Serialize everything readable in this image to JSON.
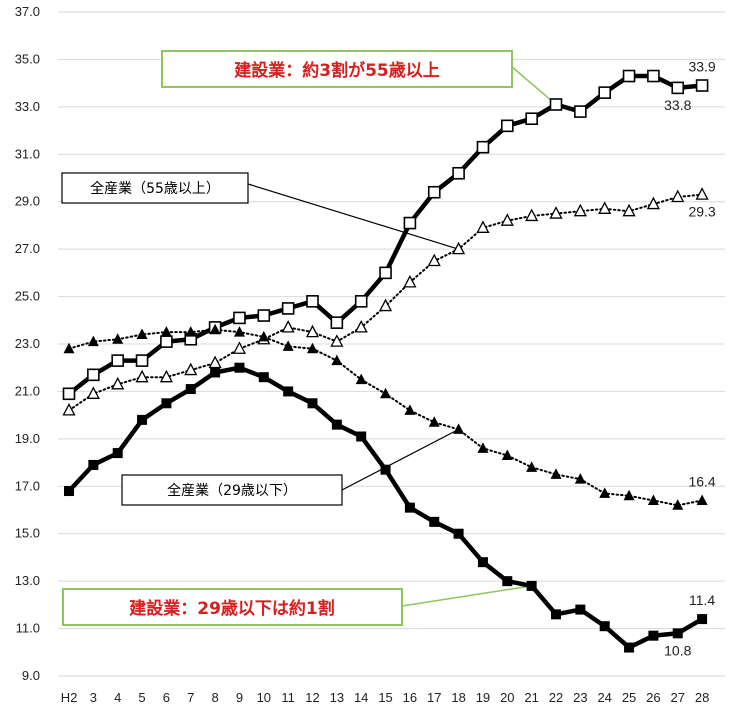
{
  "chart_data": {
    "type": "line",
    "categories": [
      "H2",
      "3",
      "4",
      "5",
      "6",
      "7",
      "8",
      "9",
      "10",
      "11",
      "12",
      "13",
      "14",
      "15",
      "16",
      "17",
      "18",
      "19",
      "20",
      "21",
      "22",
      "23",
      "24",
      "25",
      "26",
      "27",
      "28"
    ],
    "ylim": [
      9.0,
      37.0
    ],
    "yticks": [
      "9.0",
      "11.0",
      "13.0",
      "15.0",
      "17.0",
      "19.0",
      "21.0",
      "23.0",
      "25.0",
      "27.0",
      "29.0",
      "31.0",
      "33.0",
      "35.0",
      "37.0"
    ],
    "grid": true,
    "series": [
      {
        "key": "const55",
        "style": "thick-solid",
        "marker": "open-square",
        "values": [
          20.9,
          21.7,
          22.3,
          22.3,
          23.1,
          23.2,
          23.7,
          24.1,
          24.2,
          24.5,
          24.8,
          23.9,
          24.8,
          26.0,
          28.1,
          29.4,
          30.2,
          31.3,
          32.2,
          32.5,
          33.1,
          32.8,
          33.6,
          34.3,
          34.3,
          33.8,
          33.9
        ]
      },
      {
        "key": "all55",
        "style": "dotted",
        "marker": "open-triangle",
        "values": [
          20.2,
          20.9,
          21.3,
          21.6,
          21.6,
          21.9,
          22.2,
          22.8,
          23.2,
          23.7,
          23.5,
          23.1,
          23.7,
          24.6,
          25.6,
          26.5,
          27.0,
          27.9,
          28.2,
          28.4,
          28.5,
          28.6,
          28.7,
          28.6,
          28.9,
          29.2,
          29.3
        ]
      },
      {
        "key": "all29",
        "style": "dotted",
        "marker": "filled-triangle",
        "values": [
          22.8,
          23.1,
          23.2,
          23.4,
          23.5,
          23.5,
          23.6,
          23.5,
          23.3,
          22.9,
          22.8,
          22.3,
          21.5,
          20.9,
          20.2,
          19.7,
          19.4,
          18.6,
          18.3,
          17.8,
          17.5,
          17.3,
          16.7,
          16.6,
          16.4,
          16.2,
          16.4
        ]
      },
      {
        "key": "const29",
        "style": "thick-solid",
        "marker": "filled-square",
        "values": [
          16.8,
          17.9,
          18.4,
          19.8,
          20.5,
          21.1,
          21.8,
          22.0,
          21.6,
          21.0,
          20.5,
          19.6,
          19.1,
          17.7,
          16.1,
          15.5,
          15.0,
          13.8,
          13.0,
          12.8,
          11.6,
          11.8,
          11.1,
          10.2,
          10.7,
          10.8,
          11.4
        ]
      }
    ],
    "data_labels": [
      {
        "series": "const55",
        "index": 26,
        "text": "33.9",
        "pos": "above"
      },
      {
        "series": "const55",
        "index": 25,
        "text": "33.8",
        "pos": "below"
      },
      {
        "series": "all55",
        "index": 26,
        "text": "29.3",
        "pos": "below"
      },
      {
        "series": "all29",
        "index": 26,
        "text": "16.4",
        "pos": "above"
      },
      {
        "series": "const29",
        "index": 26,
        "text": "11.4",
        "pos": "above"
      },
      {
        "series": "const29",
        "index": 25,
        "text": "10.8",
        "pos": "below"
      }
    ],
    "annotations": [
      {
        "key": "ann_const55",
        "text": "建設業：約3割が55歳以上",
        "style": "red"
      },
      {
        "key": "ann_all55",
        "text": "全産業（55歳以上）",
        "style": "black"
      },
      {
        "key": "ann_all29",
        "text": "全産業（29歳以下）",
        "style": "black"
      },
      {
        "key": "ann_const29",
        "text": "建設業：29歳以下は約1割",
        "style": "red"
      }
    ]
  },
  "colors": {
    "line": "#000000",
    "grid": "#d9d9d9",
    "callout_red_text": "#d62020",
    "callout_green_border": "#8fc45f"
  }
}
